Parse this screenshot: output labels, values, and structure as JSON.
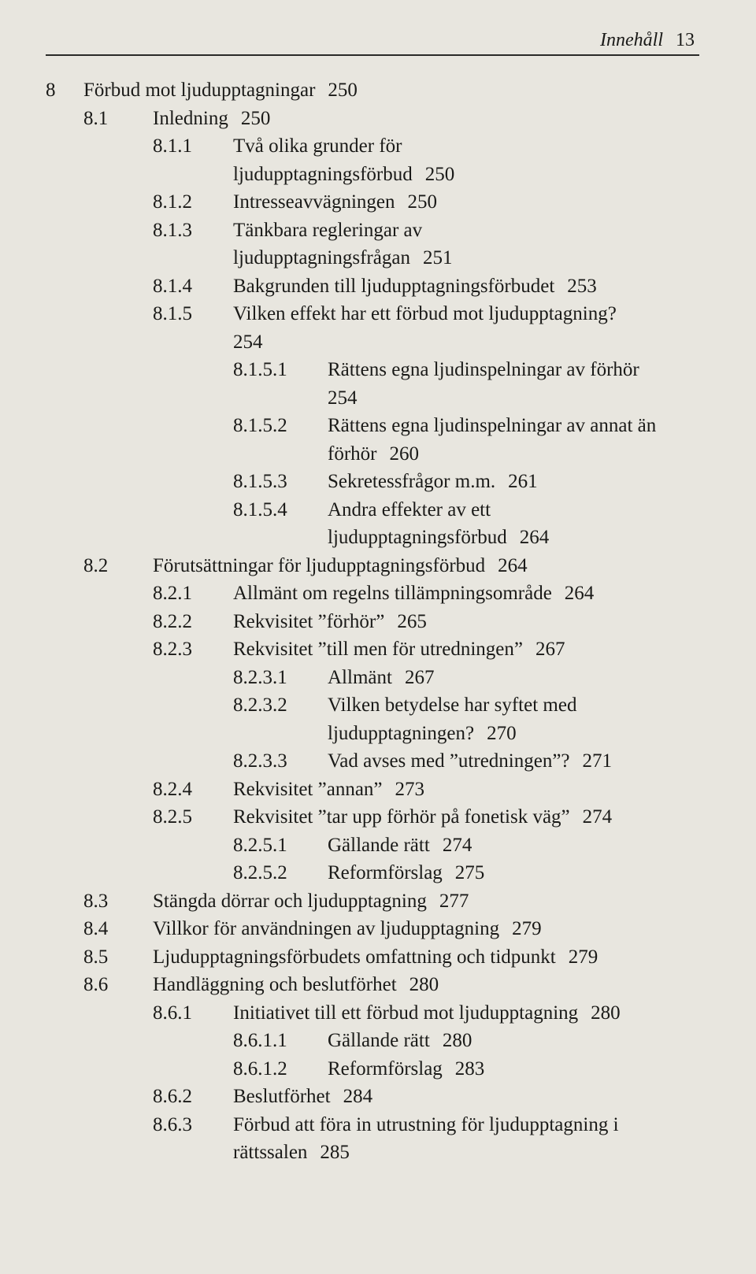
{
  "header": {
    "label": "Innehåll",
    "page": "13"
  },
  "lines": [
    {
      "lvl": 0,
      "cols": [
        "chap"
      ],
      "num": [
        "8"
      ],
      "text": "Förbud mot ljudupptagningar",
      "pg": "250"
    },
    {
      "lvl": 1,
      "cols": [
        "sec"
      ],
      "num": [
        "8.1"
      ],
      "text": "Inledning",
      "pg": "250"
    },
    {
      "lvl": 2,
      "cols": [
        "sub"
      ],
      "num": [
        "8.1.1"
      ],
      "text": "Två olika grunder för"
    },
    {
      "hang": "lvl2",
      "text": "ljudupptagningsförbud",
      "pg": "250"
    },
    {
      "lvl": 2,
      "cols": [
        "sub"
      ],
      "num": [
        "8.1.2"
      ],
      "text": "Intresseavvägningen",
      "pg": "250"
    },
    {
      "lvl": 2,
      "cols": [
        "sub"
      ],
      "num": [
        "8.1.3"
      ],
      "text": "Tänkbara regleringar av"
    },
    {
      "hang": "lvl2",
      "text": "ljudupptagningsfrågan",
      "pg": "251"
    },
    {
      "lvl": 2,
      "cols": [
        "sub"
      ],
      "num": [
        "8.1.4"
      ],
      "text": "Bakgrunden till ljudupptagningsförbudet",
      "pg": "253"
    },
    {
      "lvl": 2,
      "cols": [
        "sub"
      ],
      "num": [
        "8.1.5"
      ],
      "text": "Vilken effekt har ett förbud mot ljudupptagning?"
    },
    {
      "hang": "lvl2",
      "text": "254"
    },
    {
      "lvl": 3,
      "cols": [
        "ssub"
      ],
      "num": [
        "8.1.5.1"
      ],
      "text": "Rättens egna ljudinspelningar av förhör"
    },
    {
      "hang": "lvl3",
      "text": "254"
    },
    {
      "lvl": 3,
      "cols": [
        "ssub"
      ],
      "num": [
        "8.1.5.2"
      ],
      "text": "Rättens egna ljudinspelningar av annat än"
    },
    {
      "hang": "lvl3",
      "text": "förhör",
      "pg": "260"
    },
    {
      "lvl": 3,
      "cols": [
        "ssub"
      ],
      "num": [
        "8.1.5.3"
      ],
      "text": "Sekretessfrågor m.m.",
      "pg": "261"
    },
    {
      "lvl": 3,
      "cols": [
        "ssub"
      ],
      "num": [
        "8.1.5.4"
      ],
      "text": "Andra effekter av ett"
    },
    {
      "hang": "lvl3",
      "text": "ljudupptagningsförbud",
      "pg": "264"
    },
    {
      "lvl": 1,
      "cols": [
        "sec"
      ],
      "num": [
        "8.2"
      ],
      "text": "Förutsättningar för ljudupptagningsförbud",
      "pg": "264"
    },
    {
      "lvl": 2,
      "cols": [
        "sub"
      ],
      "num": [
        "8.2.1"
      ],
      "text": "Allmänt om regelns tillämpningsområde",
      "pg": "264"
    },
    {
      "lvl": 2,
      "cols": [
        "sub"
      ],
      "num": [
        "8.2.2"
      ],
      "text": "Rekvisitet ”förhör”",
      "pg": "265"
    },
    {
      "lvl": 2,
      "cols": [
        "sub"
      ],
      "num": [
        "8.2.3"
      ],
      "text": "Rekvisitet ”till men för utredningen”",
      "pg": "267"
    },
    {
      "lvl": 3,
      "cols": [
        "ssub"
      ],
      "num": [
        "8.2.3.1"
      ],
      "text": "Allmänt",
      "pg": "267"
    },
    {
      "lvl": 3,
      "cols": [
        "ssub"
      ],
      "num": [
        "8.2.3.2"
      ],
      "text": "Vilken betydelse har syftet med"
    },
    {
      "hang": "lvl3",
      "text": "ljudupptagningen?",
      "pg": "270"
    },
    {
      "lvl": 3,
      "cols": [
        "ssub"
      ],
      "num": [
        "8.2.3.3"
      ],
      "text": "Vad avses med ”utredningen”?",
      "pg": "271"
    },
    {
      "lvl": 2,
      "cols": [
        "sub"
      ],
      "num": [
        "8.2.4"
      ],
      "text": "Rekvisitet ”annan”",
      "pg": "273"
    },
    {
      "lvl": 2,
      "cols": [
        "sub"
      ],
      "num": [
        "8.2.5"
      ],
      "text": "Rekvisitet ”tar upp förhör på fonetisk väg”",
      "pg": "274"
    },
    {
      "lvl": 3,
      "cols": [
        "ssub"
      ],
      "num": [
        "8.2.5.1"
      ],
      "text": "Gällande rätt",
      "pg": "274"
    },
    {
      "lvl": 3,
      "cols": [
        "ssub"
      ],
      "num": [
        "8.2.5.2"
      ],
      "text": "Reformförslag",
      "pg": "275"
    },
    {
      "lvl": 1,
      "cols": [
        "sec"
      ],
      "num": [
        "8.3"
      ],
      "text": "Stängda dörrar och ljudupptagning",
      "pg": "277"
    },
    {
      "lvl": 1,
      "cols": [
        "sec"
      ],
      "num": [
        "8.4"
      ],
      "text": "Villkor för användningen av ljudupptagning",
      "pg": "279"
    },
    {
      "lvl": 1,
      "cols": [
        "sec"
      ],
      "num": [
        "8.5"
      ],
      "text": "Ljudupptagningsförbudets omfattning och tidpunkt",
      "pg": "279"
    },
    {
      "lvl": 1,
      "cols": [
        "sec"
      ],
      "num": [
        "8.6"
      ],
      "text": "Handläggning och beslutförhet",
      "pg": "280"
    },
    {
      "lvl": 2,
      "cols": [
        "sub"
      ],
      "num": [
        "8.6.1"
      ],
      "text": "Initiativet till ett förbud mot ljudupptagning",
      "pg": "280"
    },
    {
      "lvl": 3,
      "cols": [
        "ssub"
      ],
      "num": [
        "8.6.1.1"
      ],
      "text": "Gällande rätt",
      "pg": "280"
    },
    {
      "lvl": 3,
      "cols": [
        "ssub"
      ],
      "num": [
        "8.6.1.2"
      ],
      "text": "Reformförslag",
      "pg": "283"
    },
    {
      "lvl": 2,
      "cols": [
        "sub"
      ],
      "num": [
        "8.6.2"
      ],
      "text": "Beslutförhet",
      "pg": "284"
    },
    {
      "lvl": 2,
      "cols": [
        "sub"
      ],
      "num": [
        "8.6.3"
      ],
      "text": "Förbud att föra in utrustning för ljudupptagning i"
    },
    {
      "hang": "lvl2",
      "text": "rättssalen",
      "pg": "285"
    }
  ]
}
